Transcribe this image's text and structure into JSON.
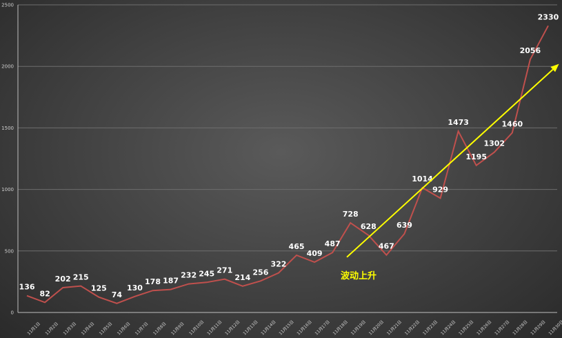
{
  "chart_data": {
    "type": "line",
    "title": "",
    "xlabel": "",
    "ylabel": "",
    "ylim": [
      0,
      2500
    ],
    "yticks": [
      0,
      500,
      1000,
      1500,
      2000,
      2500
    ],
    "grid": true,
    "legend": "none",
    "categories": [
      "11月1日",
      "11月2日",
      "11月3日",
      "11月4日",
      "11月5日",
      "11月6日",
      "11月7日",
      "11月8日",
      "11月9日",
      "11月10日",
      "11月11日",
      "11月12日",
      "11月13日",
      "11月14日",
      "11月15日",
      "11月16日",
      "11月17日",
      "11月18日",
      "11月19日",
      "11月20日",
      "11月21日",
      "11月22日",
      "11月23日",
      "11月24日",
      "11月25日",
      "11月26日",
      "11月27日",
      "11月28日",
      "11月29日",
      "11月30日"
    ],
    "series": [
      {
        "values": [
          136,
          82,
          202,
          215,
          125,
          74,
          130,
          178,
          187,
          232,
          245,
          271,
          214,
          256,
          322,
          465,
          409,
          487,
          728,
          628,
          467,
          639,
          1014,
          929,
          1473,
          1195,
          1302,
          1460,
          2056,
          2330
        ],
        "color": "#c0504d"
      }
    ],
    "annotation": {
      "text": "波动上升",
      "color": "#ffff00",
      "arrow_from": {
        "x_index": 17.8,
        "y": 450
      },
      "arrow_to": {
        "x_index": 29.6,
        "y": 2020
      }
    },
    "colors": {
      "line": "#c0504d",
      "arrow": "#ffff00",
      "gridline": "#6e6e6e",
      "axis": "#bfbfbf"
    }
  }
}
